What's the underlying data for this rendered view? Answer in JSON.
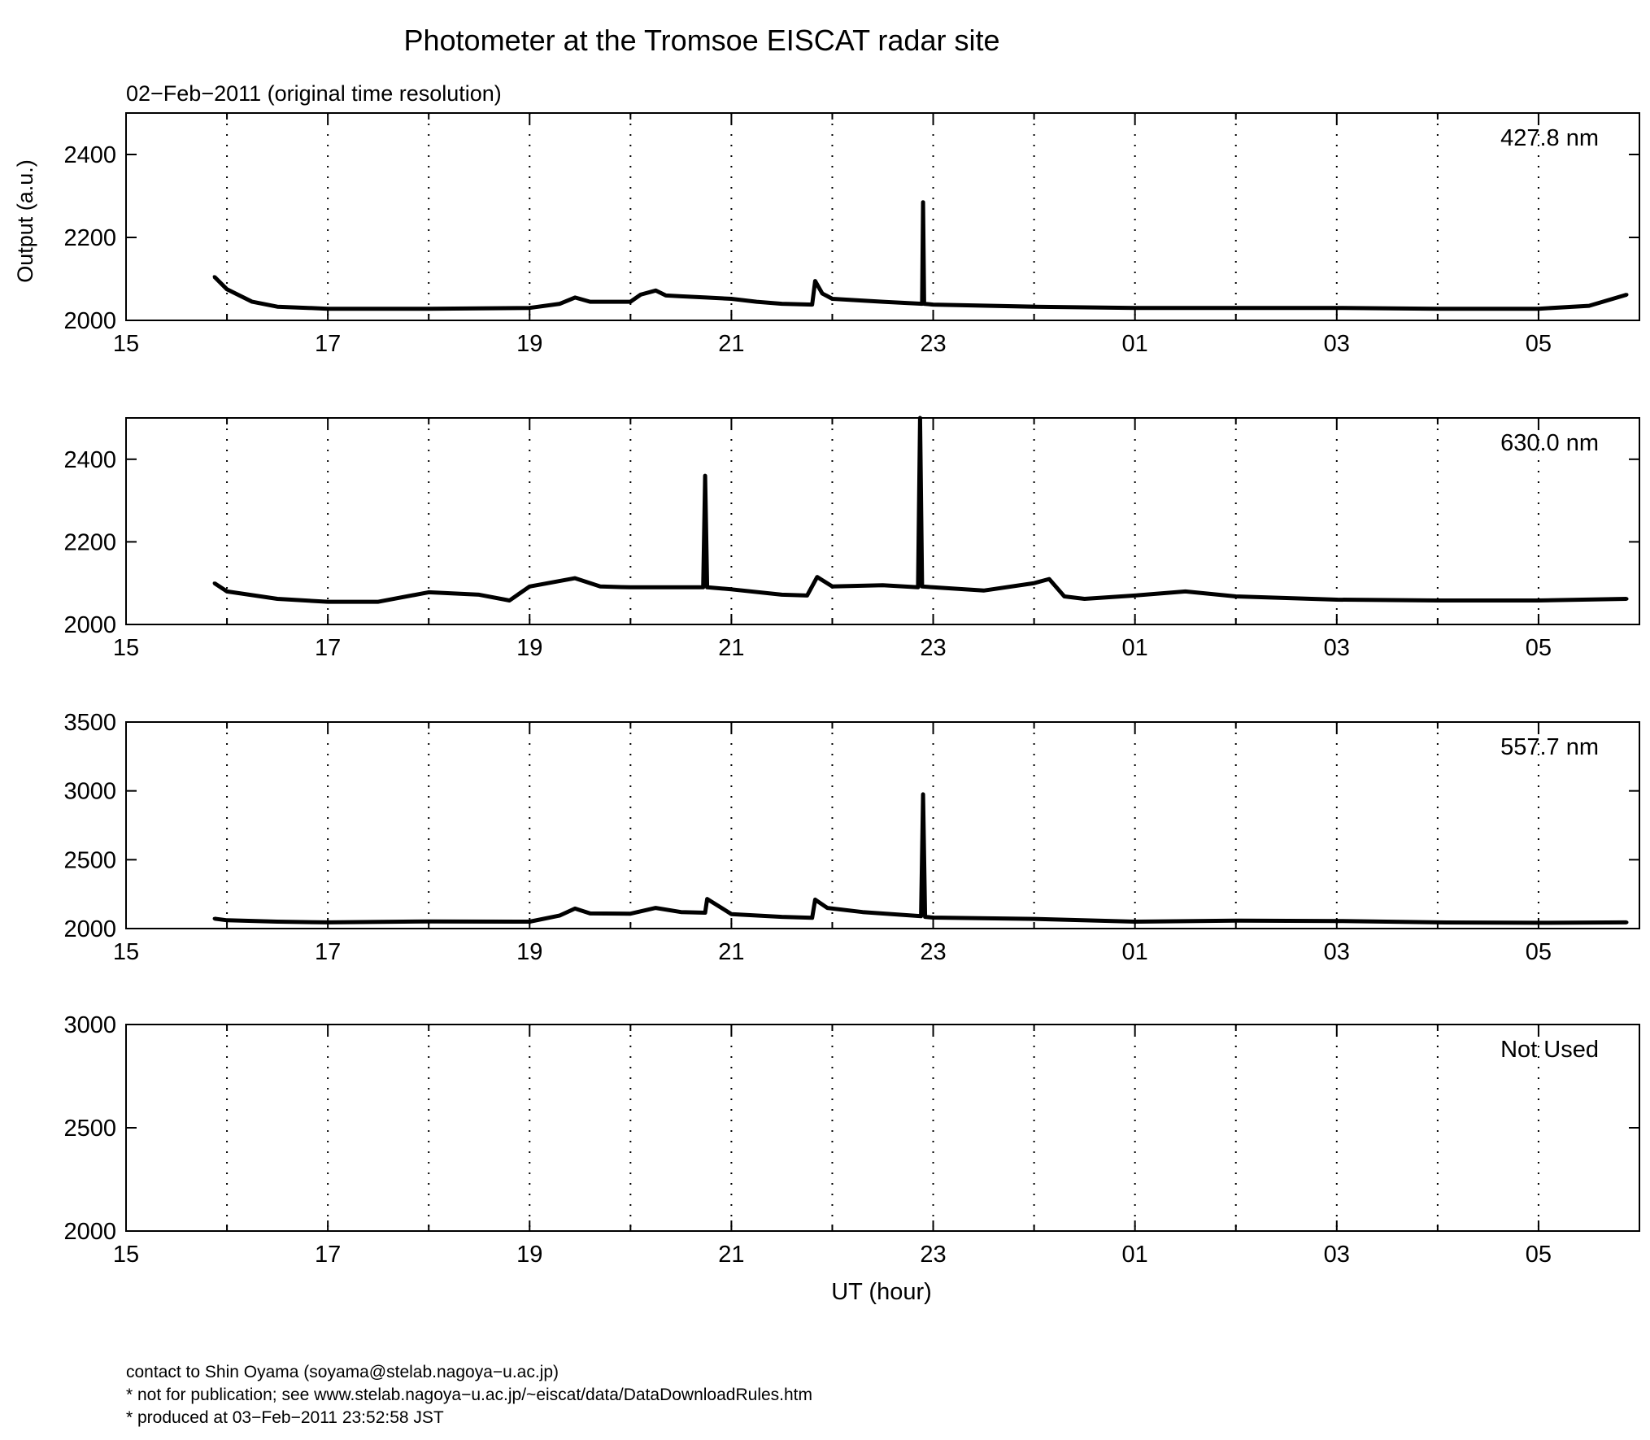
{
  "title": "Photometer at the Tromsoe EISCAT radar site",
  "subtitle": "02−Feb−2011 (original time resolution)",
  "ylabel": "Output (a.u.)",
  "xlabel": "UT (hour)",
  "footer": [
    "contact to Shin Oyama (soyama@stelab.nagoya−u.ac.jp)",
    "* not for publication; see www.stelab.nagoya−u.ac.jp/~eiscat/data/DataDownloadRules.htm",
    "* produced at 03−Feb−2011 23:52:58 JST"
  ],
  "chart_data": [
    {
      "type": "line",
      "label": "427.8 nm",
      "x_unit": "hours since 15 UT",
      "xlim": [
        15,
        30
      ],
      "xtick_labels": [
        "15",
        "17",
        "19",
        "21",
        "23",
        "01",
        "03",
        "05"
      ],
      "ylim": [
        2000,
        2500
      ],
      "yticks": [
        2000,
        2200,
        2400
      ],
      "grid": "vertical dotted, hourly",
      "series": [
        {
          "x": [
            15.875,
            16.0,
            16.25,
            16.5,
            17.0,
            18.0,
            19.0,
            19.3,
            19.45,
            19.6,
            20.0,
            20.1,
            20.25,
            20.35,
            20.5,
            20.75,
            21.0,
            21.25,
            21.5,
            21.8,
            21.83,
            21.9,
            22.0,
            22.5,
            22.89,
            22.9,
            22.91,
            23.0,
            24.0,
            25.0,
            26.0,
            27.0,
            28.0,
            29.0,
            29.5,
            29.875
          ],
          "y": [
            2105,
            2075,
            2045,
            2033,
            2028,
            2028,
            2030,
            2040,
            2055,
            2045,
            2045,
            2062,
            2072,
            2060,
            2058,
            2055,
            2052,
            2045,
            2040,
            2038,
            2095,
            2065,
            2052,
            2045,
            2040,
            2285,
            2040,
            2038,
            2033,
            2030,
            2030,
            2030,
            2028,
            2028,
            2035,
            2062
          ]
        }
      ]
    },
    {
      "type": "line",
      "label": "630.0 nm",
      "x_unit": "hours since 15 UT",
      "xlim": [
        15,
        30
      ],
      "xtick_labels": [
        "15",
        "17",
        "19",
        "21",
        "23",
        "01",
        "03",
        "05"
      ],
      "ylim": [
        2000,
        2500
      ],
      "yticks": [
        2000,
        2200,
        2400
      ],
      "grid": "vertical dotted, hourly",
      "series": [
        {
          "x": [
            15.875,
            16.0,
            16.5,
            17.0,
            17.5,
            18.0,
            18.5,
            18.8,
            19.0,
            19.45,
            19.7,
            20.0,
            20.5,
            20.72,
            20.74,
            20.76,
            21.0,
            21.5,
            21.75,
            21.85,
            22.0,
            22.5,
            22.85,
            22.87,
            22.89,
            23.0,
            23.5,
            24.0,
            24.15,
            24.3,
            24.5,
            25.0,
            25.5,
            26.0,
            27.0,
            28.0,
            29.0,
            29.875
          ],
          "y": [
            2100,
            2080,
            2062,
            2055,
            2055,
            2078,
            2072,
            2058,
            2092,
            2112,
            2092,
            2090,
            2090,
            2090,
            2360,
            2090,
            2085,
            2072,
            2070,
            2115,
            2092,
            2095,
            2090,
            2500,
            2092,
            2090,
            2082,
            2100,
            2110,
            2068,
            2062,
            2070,
            2080,
            2068,
            2060,
            2058,
            2058,
            2062
          ]
        }
      ]
    },
    {
      "type": "line",
      "label": "557.7 nm",
      "x_unit": "hours since 15 UT",
      "xlim": [
        15,
        30
      ],
      "xtick_labels": [
        "15",
        "17",
        "19",
        "21",
        "23",
        "01",
        "03",
        "05"
      ],
      "ylim": [
        2000,
        3500
      ],
      "yticks": [
        2000,
        2500,
        3000,
        3500
      ],
      "grid": "vertical dotted, hourly",
      "series": [
        {
          "x": [
            15.875,
            16.0,
            16.5,
            17.0,
            18.0,
            19.0,
            19.3,
            19.45,
            19.6,
            20.0,
            20.25,
            20.5,
            20.74,
            20.76,
            21.0,
            21.5,
            21.8,
            21.83,
            21.95,
            22.3,
            22.88,
            22.9,
            22.92,
            23.0,
            24.0,
            25.0,
            26.0,
            27.0,
            28.0,
            29.0,
            29.875
          ],
          "y": [
            2072,
            2060,
            2050,
            2045,
            2052,
            2050,
            2095,
            2145,
            2110,
            2108,
            2150,
            2120,
            2115,
            2215,
            2105,
            2085,
            2078,
            2210,
            2150,
            2120,
            2090,
            2975,
            2085,
            2080,
            2070,
            2050,
            2058,
            2055,
            2045,
            2042,
            2045
          ]
        }
      ]
    },
    {
      "type": "line",
      "label": "Not Used",
      "x_unit": "hours since 15 UT",
      "xlim": [
        15,
        30
      ],
      "xtick_labels": [
        "15",
        "17",
        "19",
        "21",
        "23",
        "01",
        "03",
        "05"
      ],
      "ylim": [
        2000,
        3000
      ],
      "yticks": [
        2000,
        2500,
        3000
      ],
      "grid": "vertical dotted, hourly",
      "series": []
    }
  ]
}
